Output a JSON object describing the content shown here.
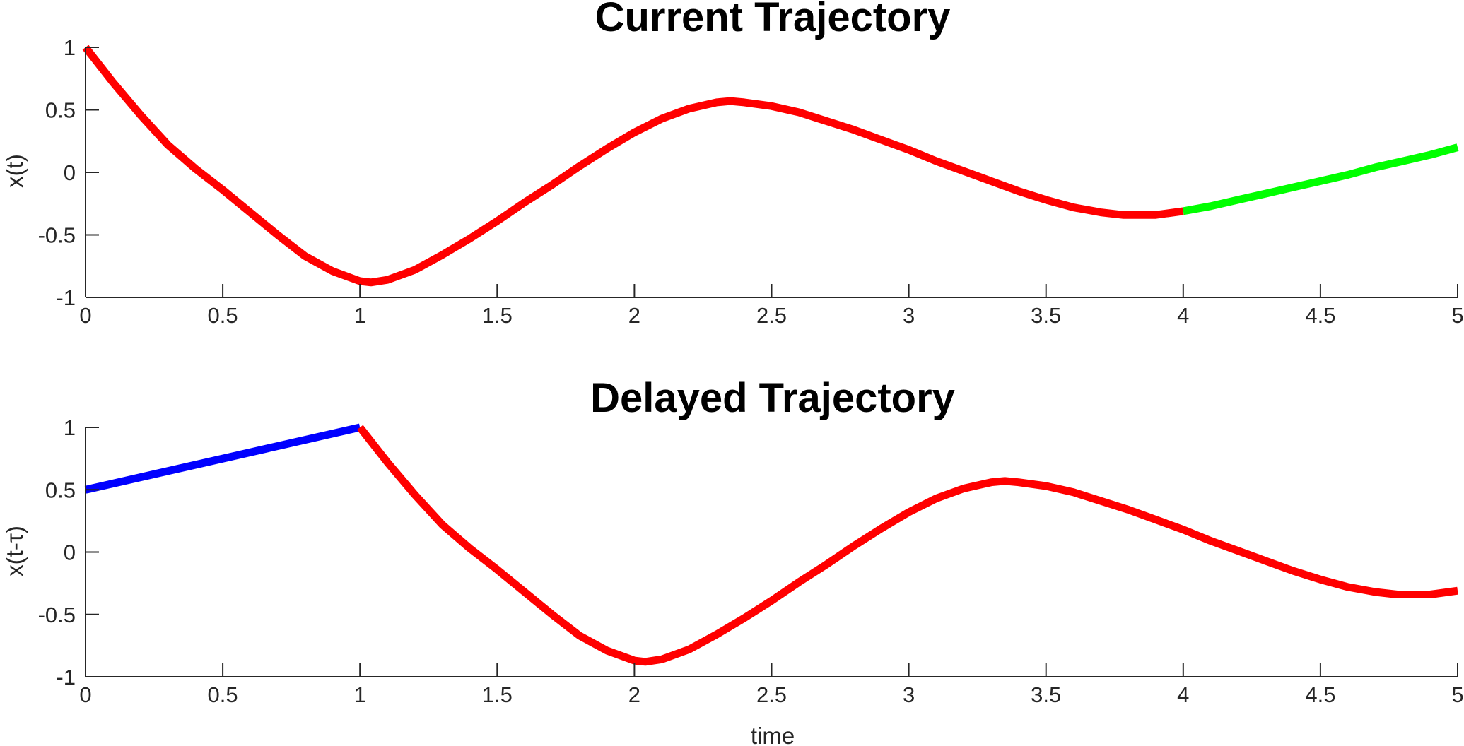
{
  "chart_data": [
    {
      "type": "line",
      "title": "Current Trajectory",
      "xlabel": "",
      "ylabel": "x(t)",
      "xlim": [
        0,
        5
      ],
      "ylim": [
        -1,
        1
      ],
      "x_ticks": [
        "0",
        "0.5",
        "1",
        "1.5",
        "2",
        "2.5",
        "3",
        "3.5",
        "4",
        "4.5",
        "5"
      ],
      "y_ticks": [
        "1",
        "0.5",
        "0",
        "-0.5",
        "-1"
      ],
      "grid": false,
      "series": [
        {
          "color": "#ff0000",
          "x": [
            0,
            0.1,
            0.2,
            0.3,
            0.4,
            0.5,
            0.6,
            0.7,
            0.8,
            0.9,
            1.0,
            1.04,
            1.1,
            1.2,
            1.3,
            1.4,
            1.5,
            1.6,
            1.7,
            1.8,
            1.9,
            2.0,
            2.1,
            2.2,
            2.3,
            2.35,
            2.4,
            2.5,
            2.6,
            2.7,
            2.8,
            2.9,
            3.0,
            3.1,
            3.2,
            3.3,
            3.4,
            3.5,
            3.6,
            3.7,
            3.78,
            3.9,
            4.0
          ],
          "y": [
            1.0,
            0.72,
            0.46,
            0.22,
            0.03,
            -0.14,
            -0.32,
            -0.5,
            -0.67,
            -0.79,
            -0.87,
            -0.88,
            -0.86,
            -0.78,
            -0.66,
            -0.53,
            -0.39,
            -0.24,
            -0.1,
            0.05,
            0.19,
            0.32,
            0.43,
            0.51,
            0.56,
            0.57,
            0.56,
            0.53,
            0.48,
            0.41,
            0.34,
            0.26,
            0.18,
            0.09,
            0.01,
            -0.07,
            -0.15,
            -0.22,
            -0.28,
            -0.32,
            -0.34,
            -0.34,
            -0.31
          ]
        },
        {
          "color": "#00ff00",
          "x": [
            4.0,
            4.1,
            4.2,
            4.3,
            4.4,
            4.5,
            4.6,
            4.7,
            4.8,
            4.9,
            5.0
          ],
          "y": [
            -0.31,
            -0.27,
            -0.22,
            -0.17,
            -0.12,
            -0.07,
            -0.02,
            0.04,
            0.09,
            0.14,
            0.2
          ]
        }
      ]
    },
    {
      "type": "line",
      "title": "Delayed Trajectory",
      "xlabel": "time",
      "ylabel": "x(t-τ)",
      "xlim": [
        0,
        5
      ],
      "ylim": [
        -1,
        1
      ],
      "x_ticks": [
        "0",
        "0.5",
        "1",
        "1.5",
        "2",
        "2.5",
        "3",
        "3.5",
        "4",
        "4.5",
        "5"
      ],
      "y_ticks": [
        "1",
        "0.5",
        "0",
        "-0.5",
        "-1"
      ],
      "grid": false,
      "series": [
        {
          "color": "#0000ff",
          "x": [
            0,
            1.0
          ],
          "y": [
            0.5,
            1.0
          ]
        },
        {
          "color": "#ff0000",
          "x": [
            1.0,
            1.1,
            1.2,
            1.3,
            1.4,
            1.5,
            1.6,
            1.7,
            1.8,
            1.9,
            2.0,
            2.04,
            2.1,
            2.2,
            2.3,
            2.4,
            2.5,
            2.6,
            2.7,
            2.8,
            2.9,
            3.0,
            3.1,
            3.2,
            3.3,
            3.35,
            3.4,
            3.5,
            3.6,
            3.7,
            3.8,
            3.9,
            4.0,
            4.1,
            4.2,
            4.3,
            4.4,
            4.5,
            4.6,
            4.7,
            4.78,
            4.9,
            5.0
          ],
          "y": [
            1.0,
            0.72,
            0.46,
            0.22,
            0.03,
            -0.14,
            -0.32,
            -0.5,
            -0.67,
            -0.79,
            -0.87,
            -0.88,
            -0.86,
            -0.78,
            -0.66,
            -0.53,
            -0.39,
            -0.24,
            -0.1,
            0.05,
            0.19,
            0.32,
            0.43,
            0.51,
            0.56,
            0.57,
            0.56,
            0.53,
            0.48,
            0.41,
            0.34,
            0.26,
            0.18,
            0.09,
            0.01,
            -0.07,
            -0.15,
            -0.22,
            -0.28,
            -0.32,
            -0.34,
            -0.34,
            -0.31
          ]
        }
      ]
    }
  ]
}
